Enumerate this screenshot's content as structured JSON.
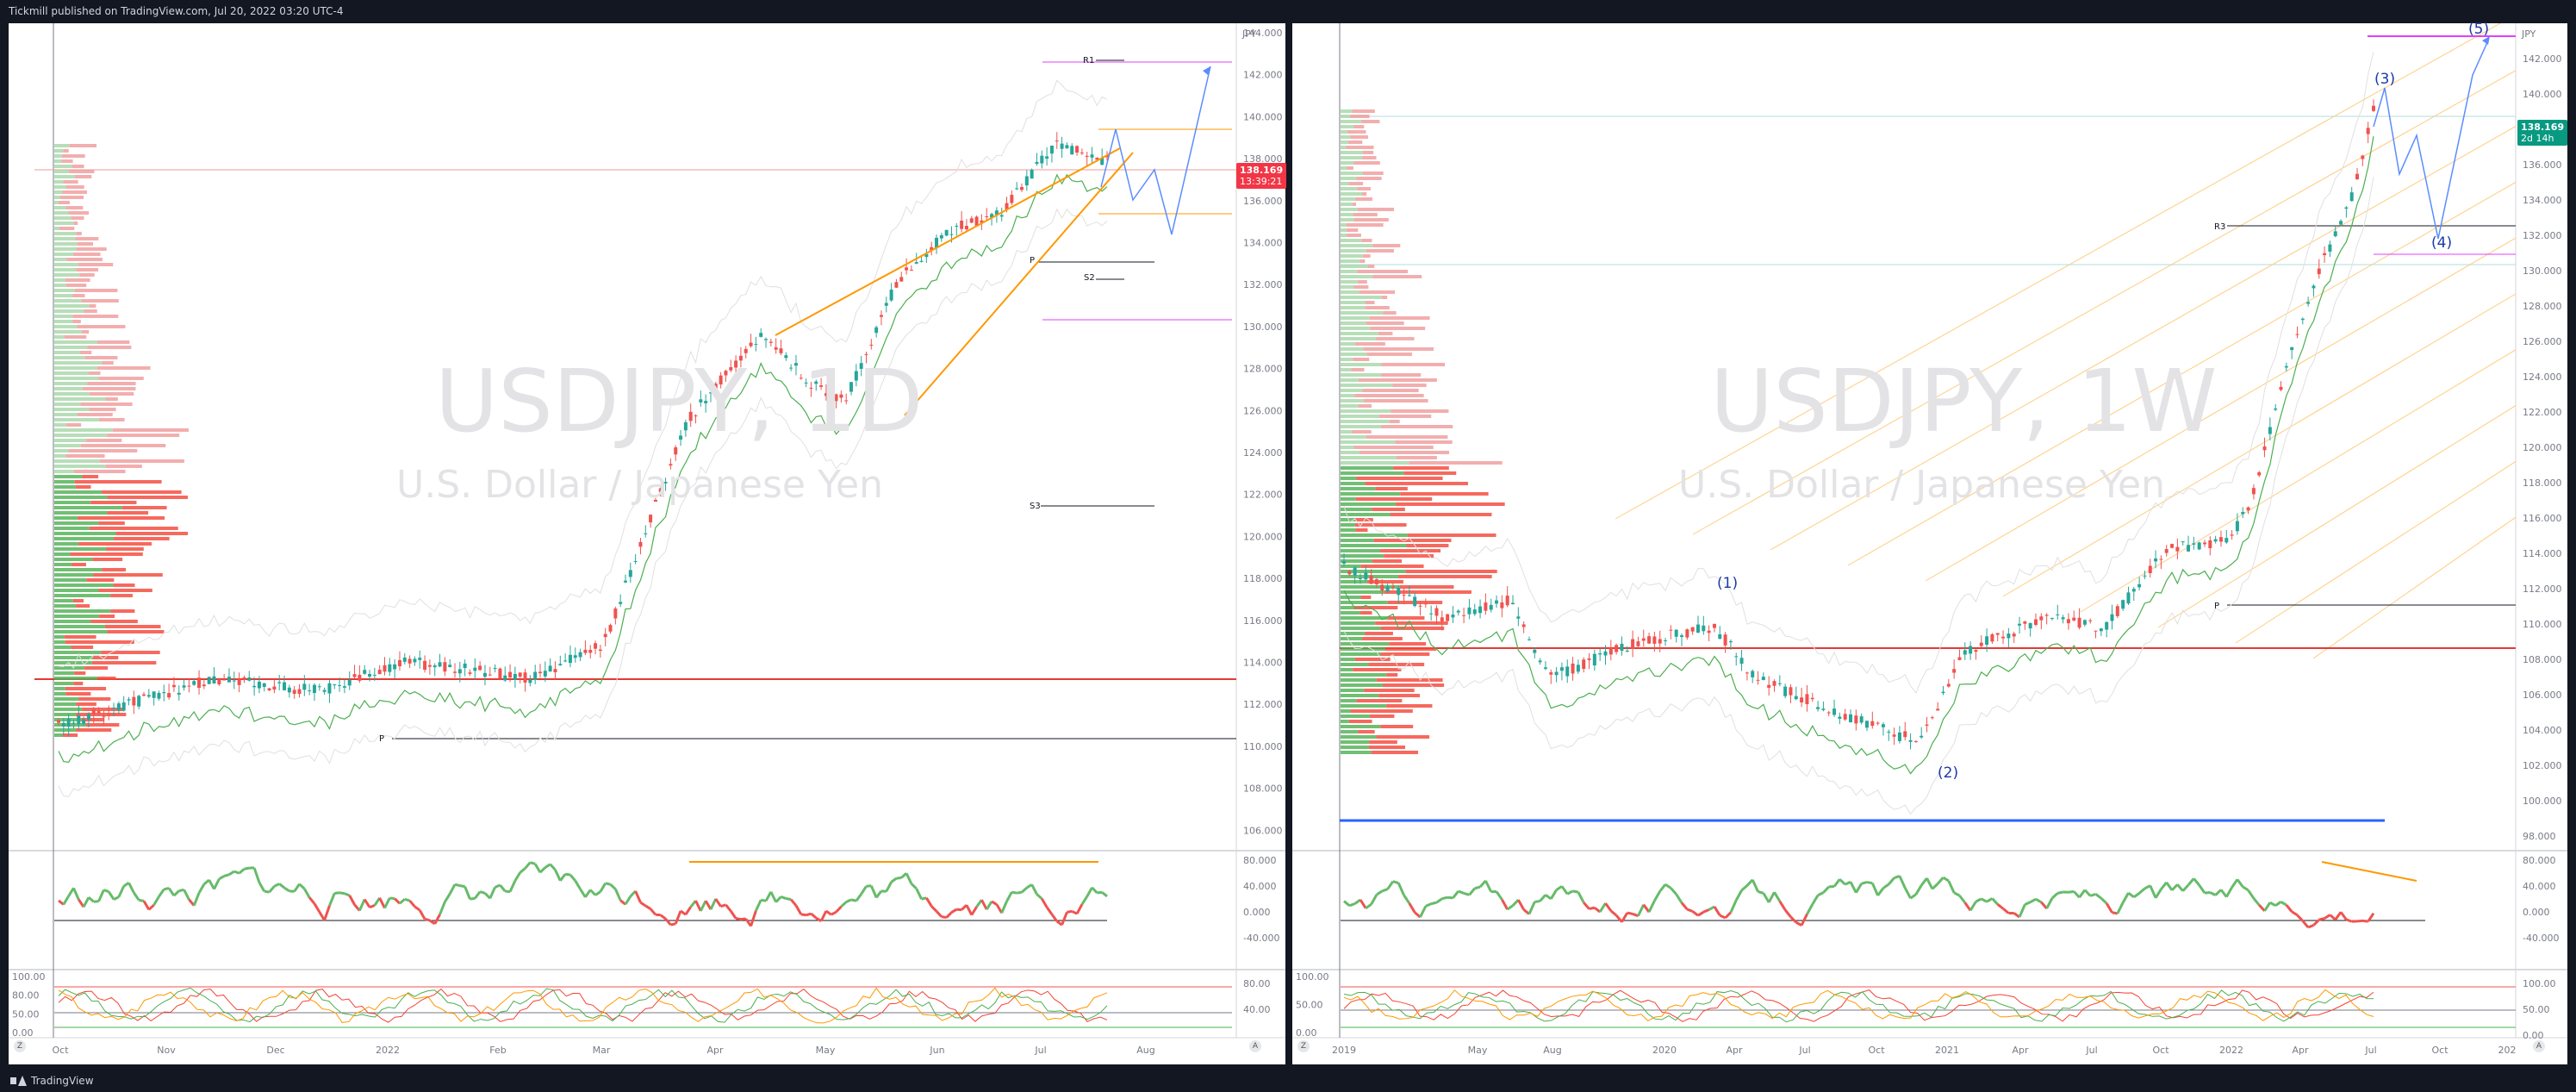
{
  "header": {
    "publish_line": "Tickmill published on TradingView.com, Jul 20, 2022 03:20 UTC-4"
  },
  "footer": {
    "brand": "TradingView"
  },
  "left_chart": {
    "symbol": "USDJPY, 1D",
    "description": "U.S. Dollar / Japanese Yen",
    "price_unit": "JPY",
    "last_price": "138.169",
    "countdown": "13:39:21",
    "price_ticks": [
      "144.000",
      "142.000",
      "140.000",
      "138.000",
      "136.000",
      "134.000",
      "132.000",
      "130.000",
      "128.000",
      "126.000",
      "124.000",
      "122.000",
      "120.000",
      "118.000",
      "116.000",
      "114.000",
      "112.000",
      "110.000",
      "108.000",
      "106.000"
    ],
    "time_ticks": [
      "Oct",
      "Nov",
      "Dec",
      "2022",
      "Feb",
      "Mar",
      "Apr",
      "May",
      "Jun",
      "Jul",
      "Aug"
    ],
    "pivot_labels": {
      "r1": "R1",
      "p_top": "P",
      "s2": "S2",
      "s3": "S3",
      "p_bottom": "P"
    },
    "rsi_ticks": [
      "80.000",
      "40.000",
      "0.000",
      "-40.000"
    ],
    "stoch_ticks": [
      "100.00",
      "80.00",
      "50.00",
      "0.00"
    ],
    "stoch_right_ticks": [
      "80.00",
      "40.00"
    ],
    "buttons": {
      "left": "Z",
      "right": "A"
    }
  },
  "right_chart": {
    "symbol": "USDJPY, 1W",
    "description": "U.S. Dollar / Japanese Yen",
    "price_unit": "JPY",
    "last_price": "138.169",
    "countdown": "2d 14h",
    "price_ticks": [
      "142.000",
      "140.000",
      "138.000",
      "136.000",
      "134.000",
      "132.000",
      "130.000",
      "128.000",
      "126.000",
      "124.000",
      "122.000",
      "120.000",
      "118.000",
      "116.000",
      "114.000",
      "112.000",
      "110.000",
      "108.000",
      "106.000",
      "104.000",
      "102.000",
      "100.000",
      "98.000"
    ],
    "time_ticks": [
      "2019",
      "May",
      "Aug",
      "2020",
      "Apr",
      "Jul",
      "Oct",
      "2021",
      "Apr",
      "Jul",
      "Oct",
      "2022",
      "Apr",
      "Jul",
      "Oct",
      "202"
    ],
    "pivot_labels": {
      "r3": "R3",
      "p": "P"
    },
    "wave_labels": {
      "w1": "(1)",
      "w2": "(2)",
      "w3": "(3)",
      "w4": "(4)",
      "w5": "(5)"
    },
    "rsi_ticks": [
      "80.000",
      "40.000",
      "0.000",
      "-40.000"
    ],
    "stoch_ticks": [
      "100.00",
      "50.00",
      "0.00"
    ],
    "stoch_right_ticks": [
      "100.00",
      "50.00",
      "0.00"
    ],
    "buttons": {
      "left": "Z",
      "right": "A"
    }
  },
  "colors": {
    "up": "#26a69a",
    "down": "#ef5350",
    "accent_orange": "#ff9800",
    "projection": "#5b8cff",
    "badge_red": "#f23645",
    "badge_green": "#089981"
  }
}
